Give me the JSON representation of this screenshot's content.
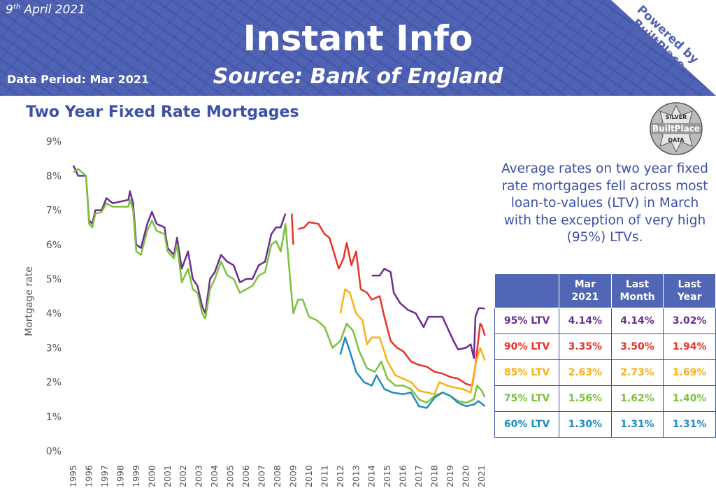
{
  "header": {
    "date_day": "9",
    "date_suffix": "th",
    "date_rest": "April 2021",
    "title": "Instant Info",
    "source": "Source: Bank of England",
    "data_period": "Data Period: Mar 2021",
    "powered_line1": "Powered by",
    "powered_line2": "BuiltPlace"
  },
  "badge": {
    "top": "SILVER",
    "middle": "BuiltPlace",
    "bottom": "DATA"
  },
  "subtitle": "Two Year Fixed Rate Mortgages",
  "description": "Average rates on two year fixed rate mortgages fell across most loan-to-values (LTV) in March with the exception of very high (95%) LTVs.",
  "table": {
    "headers": [
      "",
      "Mar 2021",
      "Last Month",
      "Last Year"
    ],
    "rows": [
      {
        "label": "95% LTV",
        "values": [
          "4.14%",
          "4.14%",
          "3.02%"
        ],
        "color": "#6b2d91"
      },
      {
        "label": "90% LTV",
        "values": [
          "3.35%",
          "3.50%",
          "1.94%"
        ],
        "color": "#e8322a"
      },
      {
        "label": "85% LTV",
        "values": [
          "2.63%",
          "2.73%",
          "1.69%"
        ],
        "color": "#f9b113"
      },
      {
        "label": "75% LTV",
        "values": [
          "1.56%",
          "1.62%",
          "1.40%"
        ],
        "color": "#7cc23b"
      },
      {
        "label": "60% LTV",
        "values": [
          "1.30%",
          "1.31%",
          "1.31%"
        ],
        "color": "#1f8ac4"
      }
    ]
  },
  "chart_data": {
    "type": "line",
    "title": "Two Year Fixed Rate Mortgages",
    "xlabel": "",
    "ylabel": "Mortgage rate",
    "xlim": [
      1995,
      2021.3
    ],
    "ylim": [
      0,
      9
    ],
    "yticks": [
      "0%",
      "1%",
      "2%",
      "3%",
      "4%",
      "5%",
      "6%",
      "7%",
      "8%",
      "9%"
    ],
    "xticks": [
      "1995",
      "1996",
      "1997",
      "1998",
      "1999",
      "2000",
      "2001",
      "2002",
      "2003",
      "2004",
      "2005",
      "2006",
      "2007",
      "2008",
      "2009",
      "2010",
      "2011",
      "2012",
      "2013",
      "2014",
      "2015",
      "2016",
      "2017",
      "2018",
      "2019",
      "2020",
      "2021"
    ],
    "series": [
      {
        "name": "95% LTV",
        "color": "#6b2d91",
        "segments": [
          [
            [
              1995,
              8.3
            ],
            [
              1995.3,
              8.0
            ],
            [
              1995.8,
              8.0
            ],
            [
              1996,
              6.7
            ],
            [
              1996.2,
              6.6
            ],
            [
              1996.4,
              7.0
            ],
            [
              1996.8,
              7.0
            ],
            [
              1997.1,
              7.35
            ],
            [
              1997.5,
              7.2
            ],
            [
              1998,
              7.25
            ],
            [
              1998.5,
              7.3
            ],
            [
              1998.6,
              7.55
            ],
            [
              1998.8,
              7.2
            ],
            [
              1999,
              6.0
            ],
            [
              1999.3,
              5.9
            ],
            [
              1999.7,
              6.6
            ],
            [
              2000,
              6.95
            ],
            [
              2000.3,
              6.6
            ],
            [
              2000.8,
              6.5
            ],
            [
              2001,
              5.9
            ],
            [
              2001.4,
              5.7
            ],
            [
              2001.6,
              6.2
            ],
            [
              2001.9,
              5.3
            ],
            [
              2002.3,
              5.8
            ],
            [
              2002.6,
              5.0
            ],
            [
              2002.9,
              4.8
            ],
            [
              2003.2,
              4.2
            ],
            [
              2003.4,
              4.0
            ],
            [
              2003.7,
              5.0
            ],
            [
              2004,
              5.2
            ],
            [
              2004.4,
              5.7
            ],
            [
              2004.8,
              5.5
            ],
            [
              2005.2,
              5.4
            ],
            [
              2005.6,
              4.9
            ],
            [
              2006,
              5.0
            ],
            [
              2006.4,
              5.0
            ],
            [
              2006.8,
              5.4
            ],
            [
              2007.2,
              5.5
            ],
            [
              2007.6,
              6.3
            ],
            [
              2007.9,
              6.5
            ],
            [
              2008.2,
              6.5
            ],
            [
              2008.5,
              6.9
            ]
          ],
          [
            [
              2014,
              5.1
            ],
            [
              2014.5,
              5.1
            ],
            [
              2014.8,
              5.3
            ],
            [
              2015.2,
              5.2
            ],
            [
              2015.4,
              4.6
            ],
            [
              2015.8,
              4.3
            ],
            [
              2016.3,
              4.1
            ],
            [
              2016.8,
              4.0
            ],
            [
              2017.3,
              3.6
            ],
            [
              2017.6,
              3.9
            ],
            [
              2018,
              3.9
            ],
            [
              2018.5,
              3.9
            ],
            [
              2018.8,
              3.6
            ],
            [
              2019.2,
              3.2
            ],
            [
              2019.5,
              2.95
            ],
            [
              2020,
              3.0
            ],
            [
              2020.3,
              3.1
            ],
            [
              2020.5,
              2.7
            ],
            [
              2020.6,
              3.9
            ],
            [
              2020.8,
              4.15
            ],
            [
              2021,
              4.15
            ],
            [
              2021.2,
              4.14
            ]
          ]
        ]
      },
      {
        "name": "90% LTV",
        "color": "#e8322a",
        "segments": [
          [
            [
              2008.9,
              6.9
            ],
            [
              2009.0,
              6.0
            ]
          ],
          [
            [
              2009.3,
              6.45
            ],
            [
              2009.7,
              6.5
            ],
            [
              2010,
              6.65
            ],
            [
              2010.6,
              6.6
            ],
            [
              2011,
              6.3
            ],
            [
              2011.3,
              6.2
            ],
            [
              2011.5,
              5.9
            ],
            [
              2011.9,
              5.3
            ],
            [
              2012.2,
              5.6
            ],
            [
              2012.4,
              6.05
            ],
            [
              2012.7,
              5.4
            ],
            [
              2013,
              5.8
            ],
            [
              2013.3,
              4.7
            ],
            [
              2013.7,
              4.6
            ],
            [
              2014,
              4.4
            ],
            [
              2014.5,
              4.5
            ],
            [
              2014.8,
              3.9
            ],
            [
              2015.2,
              3.2
            ],
            [
              2015.6,
              3.0
            ],
            [
              2016,
              2.9
            ],
            [
              2016.5,
              2.6
            ],
            [
              2017,
              2.5
            ],
            [
              2017.5,
              2.45
            ],
            [
              2018,
              2.3
            ],
            [
              2018.5,
              2.25
            ],
            [
              2019,
              2.15
            ],
            [
              2019.5,
              2.1
            ],
            [
              2020,
              1.95
            ],
            [
              2020.4,
              1.9
            ],
            [
              2020.6,
              2.5
            ],
            [
              2020.9,
              3.7
            ],
            [
              2021,
              3.65
            ],
            [
              2021.2,
              3.35
            ]
          ]
        ]
      },
      {
        "name": "85% LTV",
        "color": "#f9b113",
        "segments": [
          [
            [
              2012,
              4.0
            ],
            [
              2012.3,
              4.7
            ],
            [
              2012.6,
              4.6
            ],
            [
              2013,
              4.0
            ],
            [
              2013.4,
              3.8
            ],
            [
              2013.7,
              3.1
            ],
            [
              2014,
              3.3
            ],
            [
              2014.5,
              3.3
            ],
            [
              2015,
              2.6
            ],
            [
              2015.5,
              2.2
            ],
            [
              2016,
              2.1
            ],
            [
              2016.5,
              2.0
            ],
            [
              2017,
              1.75
            ],
            [
              2017.5,
              1.7
            ],
            [
              2018,
              1.65
            ],
            [
              2018.3,
              2.0
            ],
            [
              2018.8,
              1.9
            ],
            [
              2019.2,
              1.85
            ],
            [
              2019.8,
              1.8
            ],
            [
              2020.3,
              1.7
            ],
            [
              2020.6,
              2.5
            ],
            [
              2020.9,
              3.0
            ],
            [
              2021.2,
              2.63
            ]
          ]
        ]
      },
      {
        "name": "75% LTV",
        "color": "#7cc23b",
        "segments": [
          [
            [
              1995,
              8.1
            ],
            [
              1995.3,
              8.2
            ],
            [
              1995.8,
              8.0
            ],
            [
              1996,
              6.6
            ],
            [
              1996.2,
              6.5
            ],
            [
              1996.4,
              6.9
            ],
            [
              1996.8,
              6.95
            ],
            [
              1997.1,
              7.2
            ],
            [
              1997.5,
              7.1
            ],
            [
              1998,
              7.1
            ],
            [
              1998.5,
              7.1
            ],
            [
              1998.6,
              7.3
            ],
            [
              1998.8,
              7.0
            ],
            [
              1999,
              5.8
            ],
            [
              1999.3,
              5.7
            ],
            [
              1999.7,
              6.4
            ],
            [
              2000,
              6.7
            ],
            [
              2000.3,
              6.4
            ],
            [
              2000.8,
              6.3
            ],
            [
              2001,
              5.8
            ],
            [
              2001.4,
              5.6
            ],
            [
              2001.6,
              6.0
            ],
            [
              2001.9,
              4.9
            ],
            [
              2002.3,
              5.3
            ],
            [
              2002.6,
              4.7
            ],
            [
              2002.9,
              4.6
            ],
            [
              2003.2,
              4.0
            ],
            [
              2003.4,
              3.85
            ],
            [
              2003.7,
              4.7
            ],
            [
              2004,
              5.0
            ],
            [
              2004.4,
              5.5
            ],
            [
              2004.8,
              5.1
            ],
            [
              2005.2,
              5.0
            ],
            [
              2005.6,
              4.6
            ],
            [
              2006,
              4.7
            ],
            [
              2006.4,
              4.8
            ],
            [
              2006.8,
              5.1
            ],
            [
              2007.2,
              5.2
            ],
            [
              2007.6,
              6.0
            ],
            [
              2007.9,
              6.1
            ],
            [
              2008.2,
              5.8
            ],
            [
              2008.5,
              6.6
            ],
            [
              2008.8,
              5.0
            ],
            [
              2009,
              4.0
            ],
            [
              2009.3,
              4.4
            ],
            [
              2009.6,
              4.4
            ],
            [
              2010,
              3.9
            ],
            [
              2010.5,
              3.8
            ],
            [
              2011,
              3.6
            ],
            [
              2011.5,
              3.0
            ],
            [
              2012,
              3.2
            ],
            [
              2012.4,
              3.7
            ],
            [
              2012.8,
              3.5
            ],
            [
              2013.2,
              2.9
            ],
            [
              2013.7,
              2.4
            ],
            [
              2014.2,
              2.3
            ],
            [
              2014.6,
              2.6
            ],
            [
              2015,
              2.1
            ],
            [
              2015.5,
              1.9
            ],
            [
              2016,
              1.9
            ],
            [
              2016.5,
              1.8
            ],
            [
              2017,
              1.5
            ],
            [
              2017.5,
              1.4
            ],
            [
              2018,
              1.6
            ],
            [
              2018.5,
              1.7
            ],
            [
              2019,
              1.6
            ],
            [
              2019.5,
              1.45
            ],
            [
              2020,
              1.4
            ],
            [
              2020.5,
              1.5
            ],
            [
              2020.7,
              1.9
            ],
            [
              2021,
              1.75
            ],
            [
              2021.2,
              1.56
            ]
          ]
        ]
      },
      {
        "name": "60% LTV",
        "color": "#1f8ac4",
        "segments": [
          [
            [
              2012,
              2.8
            ],
            [
              2012.3,
              3.3
            ],
            [
              2012.6,
              2.9
            ],
            [
              2013,
              2.3
            ],
            [
              2013.5,
              2.0
            ],
            [
              2014,
              1.9
            ],
            [
              2014.3,
              2.2
            ],
            [
              2014.8,
              1.8
            ],
            [
              2015.3,
              1.7
            ],
            [
              2016,
              1.65
            ],
            [
              2016.5,
              1.7
            ],
            [
              2017,
              1.3
            ],
            [
              2017.5,
              1.25
            ],
            [
              2018,
              1.55
            ],
            [
              2018.5,
              1.7
            ],
            [
              2019,
              1.6
            ],
            [
              2019.5,
              1.4
            ],
            [
              2020,
              1.3
            ],
            [
              2020.5,
              1.35
            ],
            [
              2020.8,
              1.45
            ],
            [
              2021.2,
              1.3
            ]
          ]
        ]
      }
    ]
  }
}
